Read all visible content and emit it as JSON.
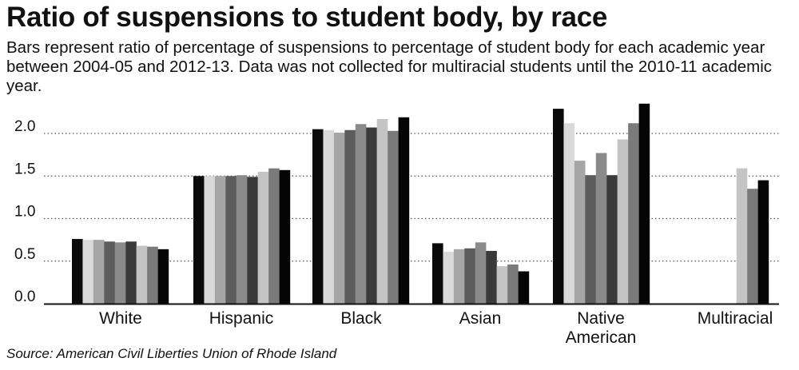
{
  "title": "Ratio of suspensions to student body, by race",
  "subtitle": "Bars represent ratio of percentage of suspensions to percentage of student body for each academic year between 2004-05 and 2012-13. Data was not collected for multiracial students until the 2010-11 academic year.",
  "source": "Source: American Civil Liberties Union of Rhode Island",
  "chart_data": {
    "type": "bar",
    "categories": [
      "White",
      "Hispanic",
      "Black",
      "Asian",
      "Native American",
      "Multiracial"
    ],
    "category_labels": [
      [
        "White"
      ],
      [
        "Hispanic"
      ],
      [
        "Black"
      ],
      [
        "Asian"
      ],
      [
        "Native",
        "American"
      ],
      [
        "Multiracial"
      ]
    ],
    "series": [
      {
        "values": [
          0.76,
          1.5,
          2.05,
          0.71,
          2.29,
          null
        ]
      },
      {
        "values": [
          0.75,
          1.5,
          2.04,
          0.61,
          2.12,
          null
        ]
      },
      {
        "values": [
          0.75,
          1.5,
          2.01,
          0.64,
          1.68,
          null
        ]
      },
      {
        "values": [
          0.73,
          1.5,
          2.04,
          0.65,
          1.51,
          null
        ]
      },
      {
        "values": [
          0.72,
          1.51,
          2.11,
          0.72,
          1.77,
          null
        ]
      },
      {
        "values": [
          0.73,
          1.49,
          2.07,
          0.62,
          1.51,
          null
        ]
      },
      {
        "values": [
          0.68,
          1.55,
          2.17,
          0.44,
          1.93,
          1.59
        ]
      },
      {
        "values": [
          0.67,
          1.59,
          2.03,
          0.46,
          2.12,
          1.35
        ]
      },
      {
        "values": [
          0.64,
          1.57,
          2.19,
          0.38,
          2.35,
          1.45
        ]
      }
    ],
    "series_colors": [
      "#0a0a0a",
      "#d9d9d9",
      "#a6a6a6",
      "#5c5c5c",
      "#8a8a8a",
      "#3a3a3a",
      "#c4c4c4",
      "#7a7a7a",
      "#050505"
    ],
    "yticks": [
      "0.0",
      "0.5",
      "1.0",
      "1.5",
      "2.0"
    ],
    "ylim": [
      0,
      2.4
    ],
    "grid": true,
    "xlabel": "",
    "ylabel": ""
  }
}
